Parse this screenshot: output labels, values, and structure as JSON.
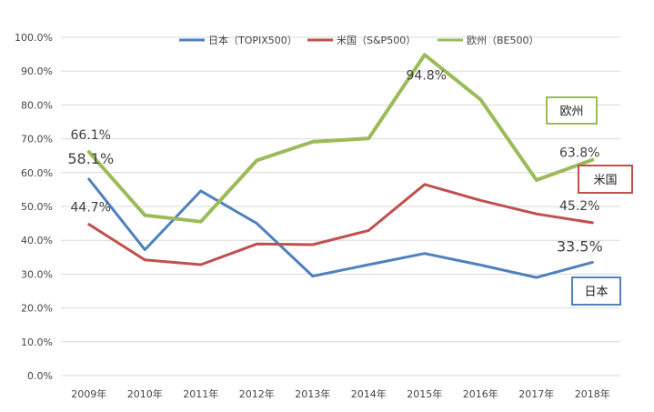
{
  "chart_data": {
    "type": "line",
    "categories": [
      "2009年",
      "2010年",
      "2011年",
      "2012年",
      "2013年",
      "2014年",
      "2015年",
      "2016年",
      "2017年",
      "2018年"
    ],
    "ylim": [
      0,
      100
    ],
    "yticks": [
      "0.0%",
      "10.0%",
      "20.0%",
      "30.0%",
      "40.0%",
      "50.0%",
      "60.0%",
      "70.0%",
      "80.0%",
      "90.0%",
      "100.0%"
    ],
    "grid": true,
    "legend_position": "top",
    "series": [
      {
        "name": "日本（TOPIX500）",
        "color": "#4F81BD",
        "values": [
          58.1,
          37.2,
          54.6,
          45.0,
          29.4,
          32.8,
          36.1,
          32.7,
          29.0,
          33.5
        ]
      },
      {
        "name": "米国（S&P500）",
        "color": "#C0504D",
        "values": [
          44.7,
          34.2,
          32.8,
          38.9,
          38.7,
          42.9,
          56.5,
          51.8,
          47.8,
          45.2
        ]
      },
      {
        "name": "欧州（BE500）",
        "color": "#9BBB59",
        "values": [
          66.1,
          47.4,
          45.5,
          63.6,
          69.1,
          70.1,
          94.8,
          81.6,
          57.8,
          63.8
        ]
      }
    ],
    "data_labels": [
      {
        "series": 2,
        "index": 0,
        "text": "66.1%"
      },
      {
        "series": 0,
        "index": 0,
        "text": "58.1%"
      },
      {
        "series": 1,
        "index": 0,
        "text": "44.7%"
      },
      {
        "series": 2,
        "index": 6,
        "text": "94.8%"
      },
      {
        "series": 2,
        "index": 9,
        "text": "63.8%"
      },
      {
        "series": 1,
        "index": 9,
        "text": "45.2%"
      },
      {
        "series": 0,
        "index": 9,
        "text": "33.5%"
      }
    ],
    "annotations": [
      {
        "text": "欧州",
        "color": "#9BBB59",
        "series": 2
      },
      {
        "text": "米国",
        "color": "#C0504D",
        "series": 1
      },
      {
        "text": "日本",
        "color": "#4F81BD",
        "series": 0
      }
    ]
  }
}
